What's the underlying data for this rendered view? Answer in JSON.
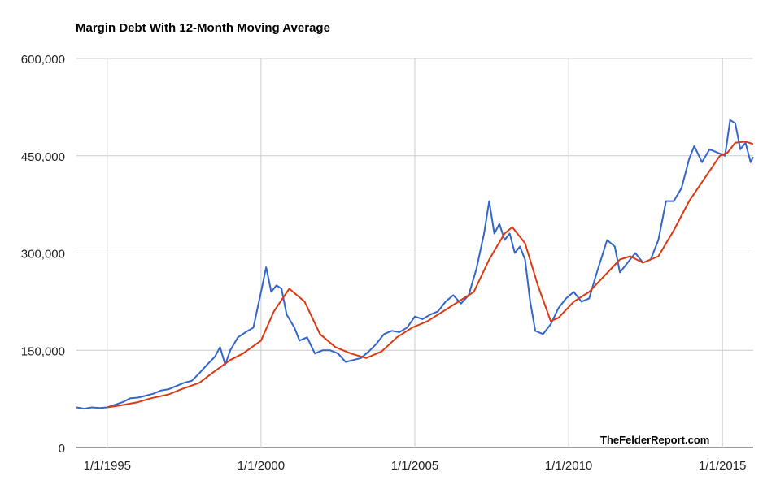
{
  "chart_data": {
    "type": "line",
    "title": "Margin Debt With 12-Month Moving Average",
    "xlabel": "",
    "ylabel": "",
    "watermark": "TheFelderReport.com",
    "xlim": [
      "1994-01",
      "2016-01"
    ],
    "ylim": [
      0,
      600000
    ],
    "y_ticks": [
      {
        "value": 0,
        "label": "0"
      },
      {
        "value": 150000,
        "label": "150,000"
      },
      {
        "value": 300000,
        "label": "300,000"
      },
      {
        "value": 450000,
        "label": "450,000"
      },
      {
        "value": 600000,
        "label": "600,000"
      }
    ],
    "x_ticks": [
      {
        "value": "1995-01",
        "label": "1/1/1995"
      },
      {
        "value": "2000-01",
        "label": "1/1/2000"
      },
      {
        "value": "2005-01",
        "label": "1/1/2005"
      },
      {
        "value": "2010-01",
        "label": "1/1/2010"
      },
      {
        "value": "2015-01",
        "label": "1/1/2015"
      }
    ],
    "grid": "horizontal",
    "series": [
      {
        "color": "#3366cc",
        "points": [
          [
            "1994-01",
            62000
          ],
          [
            "1994-04",
            60000
          ],
          [
            "1994-07",
            62000
          ],
          [
            "1994-10",
            61000
          ],
          [
            "1995-01",
            62000
          ],
          [
            "1995-04",
            66000
          ],
          [
            "1995-07",
            70000
          ],
          [
            "1995-10",
            76000
          ],
          [
            "1996-01",
            77000
          ],
          [
            "1996-04",
            80000
          ],
          [
            "1996-07",
            83000
          ],
          [
            "1996-10",
            88000
          ],
          [
            "1997-01",
            90000
          ],
          [
            "1997-04",
            95000
          ],
          [
            "1997-07",
            100000
          ],
          [
            "1997-10",
            103000
          ],
          [
            "1998-01",
            115000
          ],
          [
            "1998-04",
            128000
          ],
          [
            "1998-07",
            140000
          ],
          [
            "1998-09",
            155000
          ],
          [
            "1998-11",
            128000
          ],
          [
            "1999-01",
            150000
          ],
          [
            "1999-04",
            170000
          ],
          [
            "1999-07",
            178000
          ],
          [
            "1999-10",
            185000
          ],
          [
            "2000-01",
            240000
          ],
          [
            "2000-03",
            278000
          ],
          [
            "2000-05",
            240000
          ],
          [
            "2000-07",
            250000
          ],
          [
            "2000-09",
            245000
          ],
          [
            "2000-11",
            205000
          ],
          [
            "2001-02",
            185000
          ],
          [
            "2001-04",
            165000
          ],
          [
            "2001-07",
            170000
          ],
          [
            "2001-10",
            145000
          ],
          [
            "2002-01",
            150000
          ],
          [
            "2002-04",
            150000
          ],
          [
            "2002-07",
            145000
          ],
          [
            "2002-10",
            132000
          ],
          [
            "2003-01",
            135000
          ],
          [
            "2003-04",
            138000
          ],
          [
            "2003-07",
            148000
          ],
          [
            "2003-10",
            160000
          ],
          [
            "2004-01",
            175000
          ],
          [
            "2004-04",
            180000
          ],
          [
            "2004-07",
            178000
          ],
          [
            "2004-10",
            185000
          ],
          [
            "2005-01",
            202000
          ],
          [
            "2005-04",
            198000
          ],
          [
            "2005-07",
            205000
          ],
          [
            "2005-10",
            210000
          ],
          [
            "2006-01",
            225000
          ],
          [
            "2006-04",
            235000
          ],
          [
            "2006-07",
            222000
          ],
          [
            "2006-10",
            235000
          ],
          [
            "2007-01",
            275000
          ],
          [
            "2007-04",
            330000
          ],
          [
            "2007-06",
            380000
          ],
          [
            "2007-08",
            330000
          ],
          [
            "2007-10",
            345000
          ],
          [
            "2007-12",
            320000
          ],
          [
            "2008-02",
            330000
          ],
          [
            "2008-04",
            300000
          ],
          [
            "2008-06",
            310000
          ],
          [
            "2008-08",
            290000
          ],
          [
            "2008-10",
            225000
          ],
          [
            "2008-12",
            180000
          ],
          [
            "2009-03",
            175000
          ],
          [
            "2009-06",
            190000
          ],
          [
            "2009-09",
            215000
          ],
          [
            "2009-12",
            230000
          ],
          [
            "2010-03",
            240000
          ],
          [
            "2010-06",
            225000
          ],
          [
            "2010-09",
            230000
          ],
          [
            "2010-12",
            270000
          ],
          [
            "2011-04",
            320000
          ],
          [
            "2011-07",
            310000
          ],
          [
            "2011-09",
            270000
          ],
          [
            "2011-12",
            285000
          ],
          [
            "2012-03",
            300000
          ],
          [
            "2012-06",
            285000
          ],
          [
            "2012-09",
            290000
          ],
          [
            "2012-12",
            320000
          ],
          [
            "2013-03",
            380000
          ],
          [
            "2013-06",
            380000
          ],
          [
            "2013-09",
            400000
          ],
          [
            "2013-12",
            445000
          ],
          [
            "2014-02",
            465000
          ],
          [
            "2014-05",
            440000
          ],
          [
            "2014-08",
            460000
          ],
          [
            "2014-11",
            455000
          ],
          [
            "2015-02",
            450000
          ],
          [
            "2015-04",
            505000
          ],
          [
            "2015-06",
            500000
          ],
          [
            "2015-08",
            460000
          ],
          [
            "2015-10",
            470000
          ],
          [
            "2015-12",
            440000
          ],
          [
            "2016-01",
            448000
          ]
        ]
      },
      {
        "color": "#dc3912",
        "points": [
          [
            "1995-01",
            62000
          ],
          [
            "1995-06",
            65000
          ],
          [
            "1996-01",
            70000
          ],
          [
            "1996-06",
            76000
          ],
          [
            "1997-01",
            82000
          ],
          [
            "1997-06",
            90000
          ],
          [
            "1998-01",
            100000
          ],
          [
            "1998-06",
            115000
          ],
          [
            "1999-01",
            135000
          ],
          [
            "1999-06",
            145000
          ],
          [
            "2000-01",
            165000
          ],
          [
            "2000-06",
            210000
          ],
          [
            "2000-12",
            245000
          ],
          [
            "2001-06",
            225000
          ],
          [
            "2001-12",
            175000
          ],
          [
            "2002-06",
            155000
          ],
          [
            "2002-12",
            145000
          ],
          [
            "2003-06",
            138000
          ],
          [
            "2003-12",
            148000
          ],
          [
            "2004-06",
            170000
          ],
          [
            "2004-12",
            185000
          ],
          [
            "2005-06",
            195000
          ],
          [
            "2005-12",
            210000
          ],
          [
            "2006-06",
            225000
          ],
          [
            "2006-12",
            240000
          ],
          [
            "2007-06",
            290000
          ],
          [
            "2007-12",
            330000
          ],
          [
            "2008-03",
            340000
          ],
          [
            "2008-08",
            315000
          ],
          [
            "2009-01",
            250000
          ],
          [
            "2009-06",
            195000
          ],
          [
            "2009-09",
            200000
          ],
          [
            "2010-03",
            225000
          ],
          [
            "2010-09",
            240000
          ],
          [
            "2011-03",
            265000
          ],
          [
            "2011-09",
            290000
          ],
          [
            "2012-01",
            295000
          ],
          [
            "2012-06",
            285000
          ],
          [
            "2012-12",
            295000
          ],
          [
            "2013-06",
            335000
          ],
          [
            "2013-12",
            380000
          ],
          [
            "2014-06",
            415000
          ],
          [
            "2014-12",
            450000
          ],
          [
            "2015-03",
            455000
          ],
          [
            "2015-06",
            470000
          ],
          [
            "2015-10",
            472000
          ],
          [
            "2016-01",
            468000
          ]
        ]
      }
    ]
  }
}
